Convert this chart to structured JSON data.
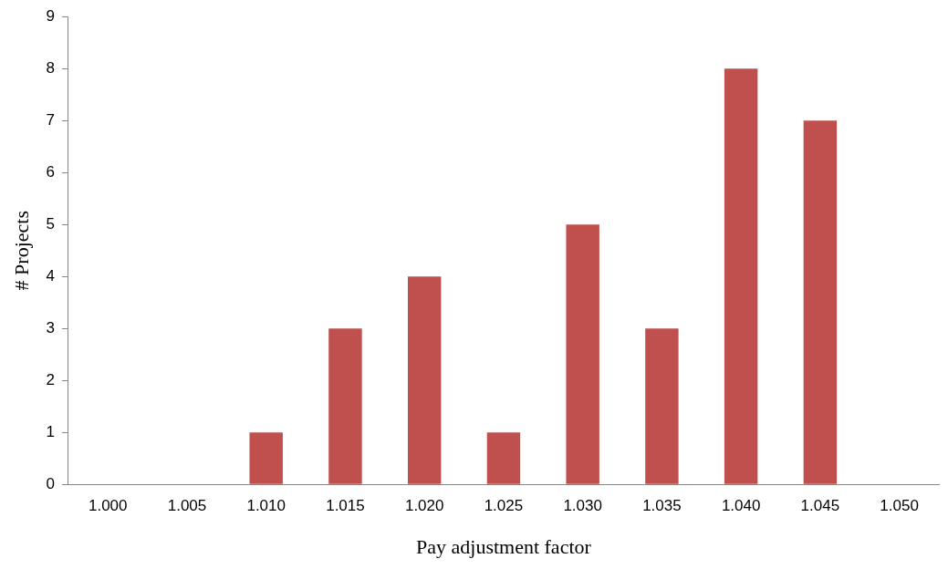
{
  "chart_data": {
    "type": "bar",
    "xlabel": "Pay adjustment factor",
    "ylabel": "# Projects",
    "categories": [
      "1.000",
      "1.005",
      "1.010",
      "1.015",
      "1.020",
      "1.025",
      "1.030",
      "1.035",
      "1.040",
      "1.045",
      "1.050"
    ],
    "values": [
      0,
      0,
      1,
      3,
      4,
      1,
      5,
      3,
      8,
      7,
      0
    ],
    "color": "#c0504d",
    "ylim": [
      0,
      9
    ],
    "yticks": [
      0,
      1,
      2,
      3,
      4,
      5,
      6,
      7,
      8,
      9
    ],
    "grid": false,
    "legend": false
  }
}
